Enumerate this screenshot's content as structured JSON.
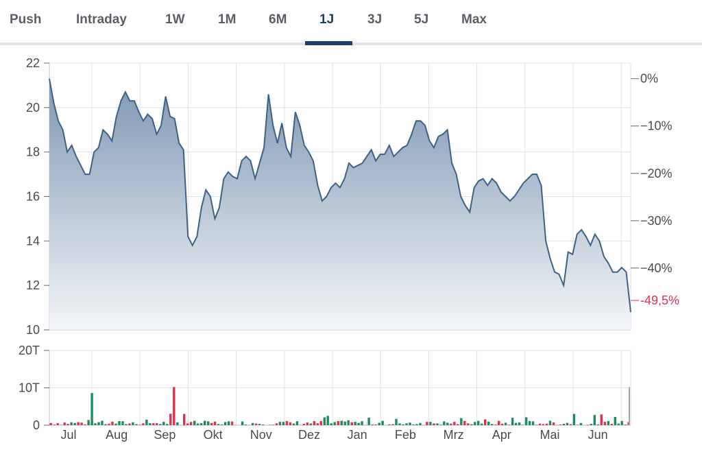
{
  "tabs": [
    {
      "label": "Push",
      "active": false
    },
    {
      "label": "Intraday",
      "active": false
    },
    {
      "label": "1W",
      "active": false
    },
    {
      "label": "1M",
      "active": false
    },
    {
      "label": "6M",
      "active": false
    },
    {
      "label": "1J",
      "active": true
    },
    {
      "label": "3J",
      "active": false
    },
    {
      "label": "5J",
      "active": false
    },
    {
      "label": "Max",
      "active": false
    }
  ],
  "colors": {
    "line": "#3d6184",
    "fill_top": "#7d97b2",
    "fill_bottom": "#f4f6f9",
    "grid": "#dde2e8",
    "volume_up": "#1f8a5a",
    "volume_down": "#e0304a",
    "last_value": "#e0304a",
    "active_tab": "#1c3f66"
  },
  "chart_data": [
    {
      "type": "area",
      "y_ticks": [
        "22",
        "20",
        "18",
        "16",
        "14",
        "12",
        "10"
      ],
      "ylim": [
        10,
        22
      ],
      "x_ticks": [
        "Jul",
        "Aug",
        "Sep",
        "Okt",
        "Nov",
        "Dez",
        "Jan",
        "Feb",
        "Mrz",
        "Apr",
        "Mai",
        "Jun"
      ],
      "right_axis_ticks": [
        "0%",
        "−10%",
        "−20%",
        "−30%",
        "−40%"
      ],
      "right_axis_range": [
        0,
        -49.5
      ],
      "last_change_label": "-49,5%",
      "price": [
        21.3,
        20.2,
        19.4,
        19.0,
        18.0,
        18.3,
        17.8,
        17.4,
        17.0,
        17.0,
        18.0,
        18.2,
        19.0,
        18.8,
        18.5,
        19.6,
        20.3,
        20.7,
        20.3,
        20.3,
        19.8,
        19.4,
        19.7,
        19.5,
        18.8,
        19.2,
        20.5,
        19.6,
        19.5,
        18.4,
        18.1,
        14.2,
        13.8,
        14.2,
        15.5,
        16.3,
        16.0,
        15.0,
        15.5,
        16.8,
        17.1,
        16.9,
        16.8,
        17.6,
        17.8,
        17.6,
        16.8,
        17.5,
        18.2,
        20.6,
        19.2,
        18.4,
        19.3,
        18.2,
        17.8,
        19.8,
        19.2,
        18.3,
        18.0,
        17.6,
        16.5,
        15.8,
        16.0,
        16.4,
        16.6,
        16.4,
        16.8,
        17.5,
        17.3,
        17.4,
        17.5,
        17.8,
        18.1,
        17.6,
        17.9,
        17.9,
        18.3,
        17.8,
        18.0,
        18.2,
        18.3,
        18.8,
        19.4,
        19.4,
        19.2,
        18.5,
        18.2,
        18.7,
        18.8,
        19.0,
        17.5,
        17.0,
        16.0,
        15.6,
        15.3,
        16.4,
        16.7,
        16.8,
        16.5,
        16.8,
        16.6,
        16.2,
        16.0,
        15.8,
        16.0,
        16.3,
        16.6,
        16.8,
        17.0,
        17.0,
        16.5,
        14.0,
        13.2,
        12.6,
        12.5,
        12.0,
        13.5,
        13.4,
        14.3,
        14.5,
        14.2,
        13.8,
        14.3,
        14.0,
        13.3,
        13.0,
        12.6,
        12.6,
        12.8,
        12.6,
        10.8
      ],
      "volume_ticks": [
        "20T",
        "10T",
        "0"
      ],
      "volume_max": 20
    }
  ]
}
